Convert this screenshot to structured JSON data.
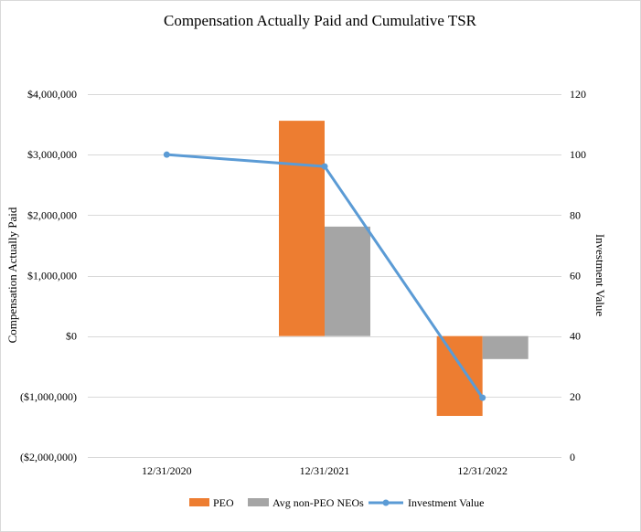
{
  "chart_data": {
    "type": "bar",
    "title": "Compensation Actually Paid and Cumulative TSR",
    "categories": [
      "12/31/2020",
      "12/31/2021",
      "12/31/2022"
    ],
    "series": [
      {
        "name": "PEO",
        "type": "bar",
        "secondary_axis": false,
        "color": "#ED7D31",
        "values": [
          null,
          3560000,
          -1320000
        ]
      },
      {
        "name": "Avg non-PEO NEOs",
        "type": "bar",
        "secondary_axis": false,
        "color": "#A5A5A5",
        "values": [
          null,
          1810000,
          -380000
        ]
      },
      {
        "name": "Investment Value",
        "type": "line",
        "secondary_axis": true,
        "color": "#5B9BD5",
        "values": [
          100,
          96.1,
          19.6
        ]
      }
    ],
    "ylabel": "Compensation Actually Paid",
    "ylim": [
      -2000000,
      4000000
    ],
    "y_ticks": [
      {
        "value": 4000000,
        "label": "$4,000,000"
      },
      {
        "value": 3000000,
        "label": "$3,000,000"
      },
      {
        "value": 2000000,
        "label": "$2,000,000"
      },
      {
        "value": 1000000,
        "label": "$1,000,000"
      },
      {
        "value": 0,
        "label": "$0"
      },
      {
        "value": -1000000,
        "label": "($1,000,000)"
      },
      {
        "value": -2000000,
        "label": "($2,000,000)"
      }
    ],
    "y2label": "Investment Value",
    "y2lim": [
      0,
      120
    ],
    "y2_ticks": [
      {
        "value": 120,
        "label": "120"
      },
      {
        "value": 100,
        "label": "100"
      },
      {
        "value": 80,
        "label": "80"
      },
      {
        "value": 60,
        "label": "60"
      },
      {
        "value": 40,
        "label": "40"
      },
      {
        "value": 20,
        "label": "20"
      },
      {
        "value": 0,
        "label": "0"
      }
    ],
    "grid": true,
    "legend_position": "bottom"
  }
}
